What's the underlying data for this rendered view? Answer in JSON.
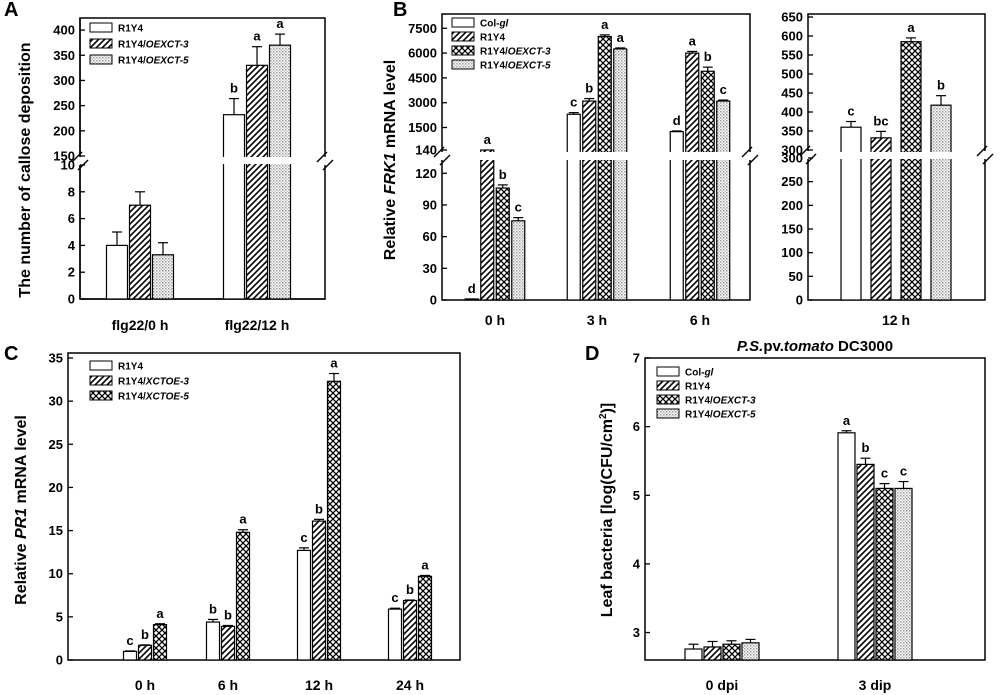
{
  "chart_data": [
    {
      "panel": "A",
      "type": "bar",
      "ylabel": "The number of callose deposition",
      "categories": [
        "flg22/0 h",
        "flg22/12 h"
      ],
      "series": [
        {
          "name": "R1Y4",
          "values": [
            4,
            232
          ],
          "errors": [
            1,
            32
          ],
          "sig": [
            "",
            "b"
          ]
        },
        {
          "name": "R1Y4/OEXCT-3",
          "values": [
            7,
            330
          ],
          "errors": [
            1,
            37
          ],
          "sig": [
            "",
            "a"
          ]
        },
        {
          "name": "R1Y4/OEXCT-5",
          "values": [
            3.3,
            370
          ],
          "errors": [
            0.9,
            22
          ],
          "sig": [
            "",
            "a"
          ]
        }
      ],
      "lower_ticks": [
        0,
        2,
        4,
        6,
        8,
        10
      ],
      "upper_ticks": [
        150,
        200,
        250,
        300,
        350,
        400
      ],
      "ylim_lower": [
        0,
        10
      ],
      "ylim_upper": [
        150,
        420
      ]
    },
    {
      "panel": "B",
      "type": "bar",
      "ylabel_parts": [
        "Relative ",
        "FRK1",
        " mRNA level"
      ],
      "categories": [
        "0 h",
        "3 h",
        "6 h"
      ],
      "series": [
        {
          "name": "Col-gl",
          "values": [
            1,
            2300,
            1250
          ],
          "errors": [
            0,
            100,
            40
          ],
          "sig": [
            "d",
            "c",
            "d"
          ]
        },
        {
          "name": "R1Y4",
          "values": [
            140,
            3100,
            6000
          ],
          "errors": [
            0,
            150,
            100
          ],
          "sig": [
            "a",
            "b",
            "a"
          ]
        },
        {
          "name": "R1Y4/OEXCT-3",
          "values": [
            106,
            7000,
            4900
          ],
          "errors": [
            3,
            100,
            250
          ],
          "sig": [
            "b",
            "a",
            "b"
          ]
        },
        {
          "name": "R1Y4/OEXCT-5",
          "values": [
            75,
            6250,
            3100
          ],
          "errors": [
            3,
            60,
            60
          ],
          "sig": [
            "c",
            "a",
            "c"
          ]
        }
      ],
      "lower_ticks": [
        0,
        30,
        60,
        90,
        120
      ],
      "upper_ticks": [
        140,
        1500,
        3000,
        4500,
        6000,
        7500
      ],
      "ylim_lower": [
        0,
        125
      ],
      "ylim_upper": [
        140,
        8000
      ]
    },
    {
      "panel": "B-right",
      "type": "bar",
      "categories": [
        "12 h"
      ],
      "series": [
        {
          "name": "Col-gl",
          "values": [
            360
          ],
          "errors": [
            15
          ],
          "sig": [
            "c"
          ]
        },
        {
          "name": "R1Y4",
          "values": [
            332
          ],
          "errors": [
            17
          ],
          "sig": [
            "bc"
          ]
        },
        {
          "name": "R1Y4/OEXCT-3",
          "values": [
            585
          ],
          "errors": [
            10
          ],
          "sig": [
            "a"
          ]
        },
        {
          "name": "R1Y4/OEXCT-5",
          "values": [
            418
          ],
          "errors": [
            25
          ],
          "sig": [
            "b"
          ]
        }
      ],
      "lower_ticks": [
        0,
        50,
        100,
        150,
        200,
        250,
        300
      ],
      "upper_ticks": [
        300,
        350,
        400,
        450,
        500,
        550,
        600,
        650
      ],
      "ylim_lower": [
        0,
        300
      ],
      "ylim_upper": [
        300,
        650
      ]
    },
    {
      "panel": "C",
      "type": "bar",
      "ylabel_parts": [
        "Relative ",
        "PR1",
        " mRNA level"
      ],
      "categories": [
        "0 h",
        "6 h",
        "12 h",
        "24 h"
      ],
      "series": [
        {
          "name": "R1Y4",
          "values": [
            1,
            4.4,
            12.7,
            5.9
          ],
          "errors": [
            0.05,
            0.3,
            0.3,
            0.1
          ],
          "sig": [
            "c",
            "b",
            "c",
            "c"
          ]
        },
        {
          "name": "R1Y4/XCTOE-3",
          "values": [
            1.7,
            3.9,
            16.1,
            6.9
          ],
          "errors": [
            0.05,
            0.1,
            0.2,
            0.05
          ],
          "sig": [
            "b",
            "b",
            "b",
            "b"
          ]
        },
        {
          "name": "R1Y4/XCTOE-5",
          "values": [
            4.1,
            14.8,
            32.3,
            9.7
          ],
          "errors": [
            0.1,
            0.3,
            0.9,
            0.1
          ],
          "sig": [
            "a",
            "a",
            "a",
            "a"
          ]
        }
      ],
      "ticks": [
        0,
        5,
        10,
        15,
        20,
        25,
        30,
        35
      ],
      "ylim": [
        0,
        35
      ]
    },
    {
      "panel": "D",
      "type": "bar",
      "title_parts": [
        "P.S.",
        "pv.",
        "tomato",
        " DC3000"
      ],
      "ylabel_parts": [
        "Leaf bacteria [log(CFU/cm",
        "2",
        ")]"
      ],
      "categories": [
        "0 dpi",
        "3 dip"
      ],
      "series": [
        {
          "name": "Col-gl",
          "values": [
            2.76,
            5.91
          ],
          "errors": [
            0.07,
            0.03
          ],
          "sig": [
            "",
            "a"
          ]
        },
        {
          "name": "R1Y4",
          "values": [
            2.79,
            5.45
          ],
          "errors": [
            0.08,
            0.09
          ],
          "sig": [
            "",
            "b"
          ]
        },
        {
          "name": "R1Y4/OEXCT-3",
          "values": [
            2.83,
            5.1
          ],
          "errors": [
            0.05,
            0.07
          ],
          "sig": [
            "",
            "c"
          ]
        },
        {
          "name": "R1Y4/OEXCT-5",
          "values": [
            2.85,
            5.1
          ],
          "errors": [
            0.05,
            0.1
          ],
          "sig": [
            "",
            "c"
          ]
        }
      ],
      "ticks": [
        3,
        4,
        5,
        6,
        7
      ],
      "ylim": [
        2.6,
        7
      ]
    }
  ],
  "legend_a": [
    [
      "R1Y4",
      ""
    ],
    [
      "R1Y4/",
      "OEXCT-3"
    ],
    [
      "R1Y4/",
      "OEXCT-5"
    ]
  ],
  "legend_b": [
    [
      "Col-",
      "gl"
    ],
    [
      "R1Y4",
      ""
    ],
    [
      "R1Y4/",
      "OEXCT-3"
    ],
    [
      "R1Y4/",
      "OEXCT-5"
    ]
  ],
  "legend_c": [
    [
      "R1Y4",
      ""
    ],
    [
      "R1Y4/",
      "XCTOE-3"
    ],
    [
      "R1Y4/",
      "XCTOE-5"
    ]
  ],
  "legend_d": [
    [
      "Col-",
      "gl"
    ],
    [
      "R1Y4",
      ""
    ],
    [
      "R1Y4/",
      "OEXCT-3"
    ],
    [
      "R1Y4/",
      "OEXCT-5"
    ]
  ],
  "panel_letters": [
    "A",
    "B",
    "C",
    "D"
  ],
  "colors": {
    "stroke": "#000000",
    "fill": "#ffffff",
    "dots": "#bdbdbd"
  }
}
